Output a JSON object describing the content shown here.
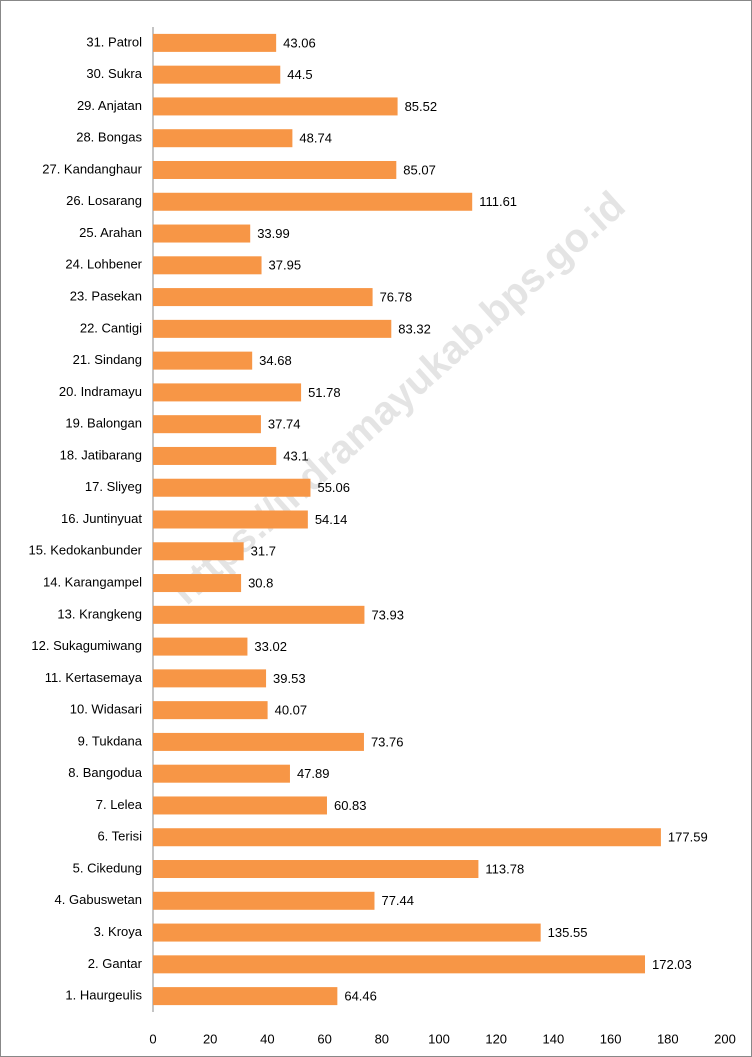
{
  "chart_data": {
    "type": "barh",
    "watermark": "https://indramayukab.bps.go.id",
    "categories": [
      "31. Patrol",
      "30. Sukra",
      "29. Anjatan",
      "28. Bongas",
      "27. Kandanghaur",
      "26. Losarang",
      "25. Arahan",
      "24. Lohbener",
      "23. Pasekan",
      "22. Cantigi",
      "21. Sindang",
      "20. Indramayu",
      "19. Balongan",
      "18. Jatibarang",
      "17. Sliyeg",
      "16. Juntinyuat",
      "15. Kedokanbunder",
      "14. Karangampel",
      "13. Krangkeng",
      "12. Sukagumiwang",
      "11. Kertasemaya",
      "10. Widasari",
      "9. Tukdana",
      "8. Bangodua",
      "7. Lelea",
      "6. Terisi",
      "5. Cikedung",
      "4. Gabuswetan",
      "3. Kroya",
      "2. Gantar",
      "1. Haurgeulis"
    ],
    "values": [
      43.06,
      44.5,
      85.52,
      48.74,
      85.07,
      111.61,
      33.99,
      37.95,
      76.78,
      83.32,
      34.68,
      51.78,
      37.74,
      43.1,
      55.06,
      54.14,
      31.7,
      30.8,
      73.93,
      33.02,
      39.53,
      40.07,
      73.76,
      47.89,
      60.83,
      177.59,
      113.78,
      77.44,
      135.55,
      172.03,
      64.46
    ],
    "color": "#f79646",
    "xlim": [
      0,
      200
    ],
    "xticks": [
      0,
      20,
      40,
      60,
      80,
      100,
      120,
      140,
      160,
      180,
      200
    ]
  }
}
